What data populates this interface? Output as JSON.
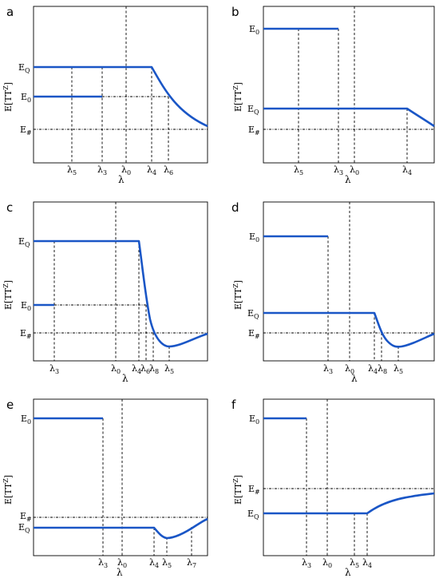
{
  "figure": {
    "y_axis_label": "E[TT",
    "y_axis_label_sup": "Z",
    "y_axis_label_end": "]",
    "x_axis_label": "λ",
    "panels": [
      {
        "letter": "a",
        "y_ticks": [
          {
            "label": "E",
            "sub": "Q"
          },
          {
            "label": "E",
            "sub": "0"
          },
          {
            "label": "E",
            "sub": "#"
          }
        ],
        "x_ticks": [
          {
            "label": "λ",
            "sub": "5"
          },
          {
            "label": "λ",
            "sub": "3"
          },
          {
            "label": "λ",
            "sub": "0"
          },
          {
            "label": "λ",
            "sub": "4"
          },
          {
            "label": "λ",
            "sub": "6"
          }
        ]
      },
      {
        "letter": "b",
        "y_ticks": [
          {
            "label": "E",
            "sub": "0"
          },
          {
            "label": "E",
            "sub": "Q"
          },
          {
            "label": "E",
            "sub": "#"
          }
        ],
        "x_ticks": [
          {
            "label": "λ",
            "sub": "5"
          },
          {
            "label": "λ",
            "sub": "3"
          },
          {
            "label": "λ",
            "sub": "0"
          },
          {
            "label": "λ",
            "sub": "4"
          }
        ]
      },
      {
        "letter": "c",
        "y_ticks": [
          {
            "label": "E",
            "sub": "Q"
          },
          {
            "label": "E",
            "sub": "0"
          },
          {
            "label": "E",
            "sub": "#"
          }
        ],
        "x_ticks": [
          {
            "label": "λ",
            "sub": "3"
          },
          {
            "label": "λ",
            "sub": "0"
          },
          {
            "label": "λ",
            "sub": "4"
          },
          {
            "label": "λ",
            "sub": "6"
          },
          {
            "label": "λ",
            "sub": "8"
          },
          {
            "label": "λ",
            "sub": "5"
          }
        ]
      },
      {
        "letter": "d",
        "y_ticks": [
          {
            "label": "E",
            "sub": "0"
          },
          {
            "label": "E",
            "sub": "Q"
          },
          {
            "label": "E",
            "sub": "#"
          }
        ],
        "x_ticks": [
          {
            "label": "λ",
            "sub": "3"
          },
          {
            "label": "λ",
            "sub": "0"
          },
          {
            "label": "λ",
            "sub": "4"
          },
          {
            "label": "λ",
            "sub": "8"
          },
          {
            "label": "λ",
            "sub": "5"
          }
        ]
      },
      {
        "letter": "e",
        "y_ticks": [
          {
            "label": "E",
            "sub": "0"
          },
          {
            "label": "E",
            "sub": "#"
          },
          {
            "label": "E",
            "sub": "Q"
          }
        ],
        "x_ticks": [
          {
            "label": "λ",
            "sub": "3"
          },
          {
            "label": "λ",
            "sub": "0"
          },
          {
            "label": "λ",
            "sub": "4"
          },
          {
            "label": "λ",
            "sub": "5"
          },
          {
            "label": "λ",
            "sub": "7"
          }
        ]
      },
      {
        "letter": "f",
        "y_ticks": [
          {
            "label": "E",
            "sub": "0"
          },
          {
            "label": "E",
            "sub": "#"
          },
          {
            "label": "E",
            "sub": "Q"
          }
        ],
        "x_ticks": [
          {
            "label": "λ",
            "sub": "3"
          },
          {
            "label": "λ",
            "sub": "0"
          },
          {
            "label": "λ",
            "sub": "5"
          },
          {
            "label": "λ",
            "sub": "4"
          }
        ]
      }
    ],
    "colors": {
      "curve": "#1a56c6",
      "lines": "#000000"
    }
  }
}
